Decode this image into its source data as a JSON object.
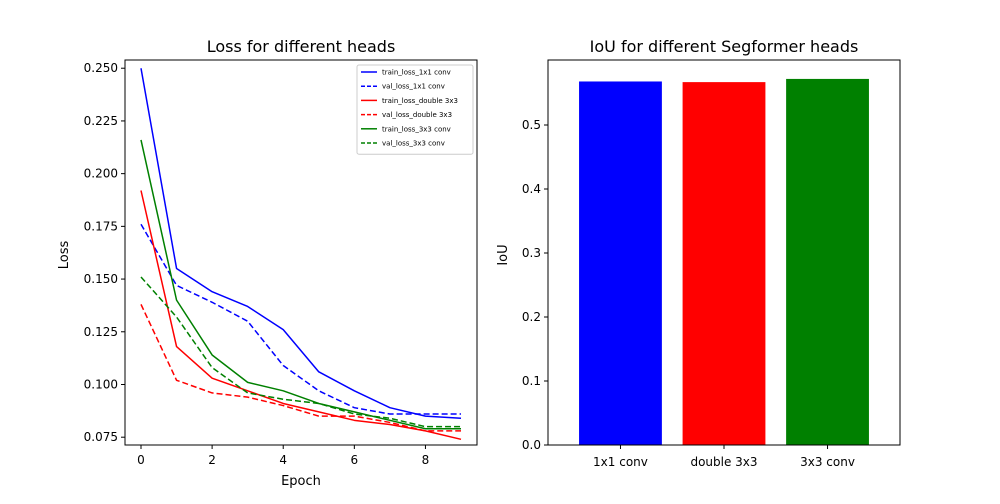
{
  "chart_data": [
    {
      "type": "line",
      "title": "Loss for different heads",
      "xlabel": "Epoch",
      "ylabel": "Loss",
      "xlim": [
        -0.45,
        9.45
      ],
      "ylim": [
        0.0713,
        0.2539
      ],
      "x_ticks": [
        0,
        2,
        4,
        6,
        8
      ],
      "y_ticks": [
        0.075,
        0.1,
        0.125,
        0.15,
        0.175,
        0.2,
        0.225,
        0.25
      ],
      "y_tick_labels": [
        "0.075",
        "0.100",
        "0.125",
        "0.150",
        "0.175",
        "0.200",
        "0.225",
        "0.250"
      ],
      "legend_position": "top-right",
      "grid": false,
      "x": [
        0,
        1,
        2,
        3,
        4,
        5,
        6,
        7,
        8,
        9
      ],
      "series": [
        {
          "name": "train_loss_1x1 conv",
          "color": "#0000ff",
          "dashed": false,
          "values": [
            0.25,
            0.155,
            0.144,
            0.137,
            0.126,
            0.106,
            0.097,
            0.089,
            0.085,
            0.084
          ]
        },
        {
          "name": "val_loss_1x1 conv",
          "color": "#0000ff",
          "dashed": true,
          "values": [
            0.176,
            0.147,
            0.139,
            0.13,
            0.109,
            0.097,
            0.089,
            0.086,
            0.086,
            0.086
          ]
        },
        {
          "name": "train_loss_double 3x3",
          "color": "#ff0000",
          "dashed": false,
          "values": [
            0.192,
            0.118,
            0.103,
            0.097,
            0.091,
            0.087,
            0.083,
            0.081,
            0.078,
            0.074
          ]
        },
        {
          "name": "val_loss_double 3x3",
          "color": "#ff0000",
          "dashed": true,
          "values": [
            0.138,
            0.102,
            0.096,
            0.094,
            0.09,
            0.085,
            0.085,
            0.082,
            0.078,
            0.078
          ]
        },
        {
          "name": "train_loss_3x3 conv",
          "color": "#008000",
          "dashed": false,
          "values": [
            0.216,
            0.14,
            0.114,
            0.101,
            0.097,
            0.091,
            0.087,
            0.083,
            0.079,
            0.079
          ]
        },
        {
          "name": "val_loss_3x3 conv",
          "color": "#008000",
          "dashed": true,
          "values": [
            0.151,
            0.132,
            0.108,
            0.096,
            0.093,
            0.091,
            0.086,
            0.084,
            0.08,
            0.08
          ]
        }
      ]
    },
    {
      "type": "bar",
      "title": "IoU for different Segformer heads",
      "xlabel": "",
      "ylabel": "IoU",
      "ylim": [
        0,
        0.6
      ],
      "y_ticks": [
        0.0,
        0.1,
        0.2,
        0.3,
        0.4,
        0.5
      ],
      "y_tick_labels": [
        "0.0",
        "0.1",
        "0.2",
        "0.3",
        "0.4",
        "0.5"
      ],
      "grid": false,
      "categories": [
        "1x1 conv",
        "double 3x3",
        "3x3 conv"
      ],
      "values": [
        0.568,
        0.567,
        0.572
      ],
      "colors": [
        "#0000ff",
        "#ff0000",
        "#008000"
      ]
    }
  ]
}
